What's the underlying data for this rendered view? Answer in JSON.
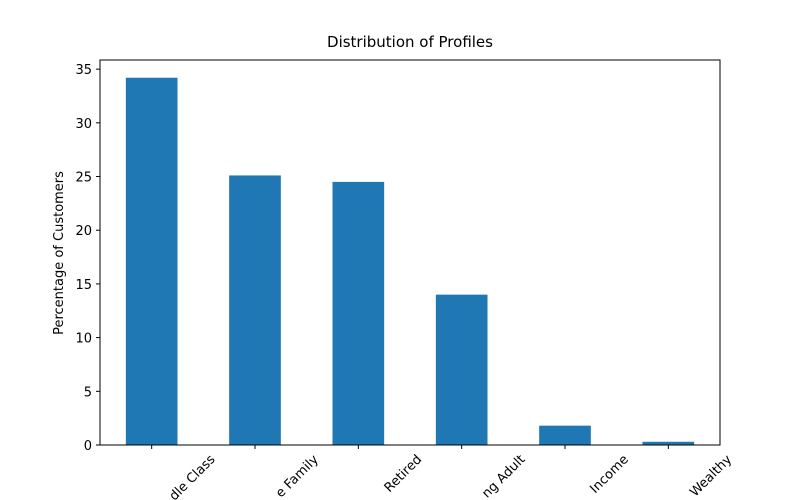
{
  "chart_data": {
    "type": "bar",
    "title": "Distribution of Profiles",
    "y_label": "Percentage of Customers",
    "categories": [
      "dle Class",
      "e Family",
      "Retired",
      "ng Adult",
      "Income",
      "Wealthy"
    ],
    "values": [
      34.2,
      25.1,
      24.5,
      14.0,
      1.8,
      0.3
    ],
    "color": "#1f77b4",
    "ylim": [
      0,
      35.85
    ],
    "yticks": [
      0,
      5,
      10,
      15,
      20,
      25,
      30,
      35
    ],
    "grid": false
  }
}
